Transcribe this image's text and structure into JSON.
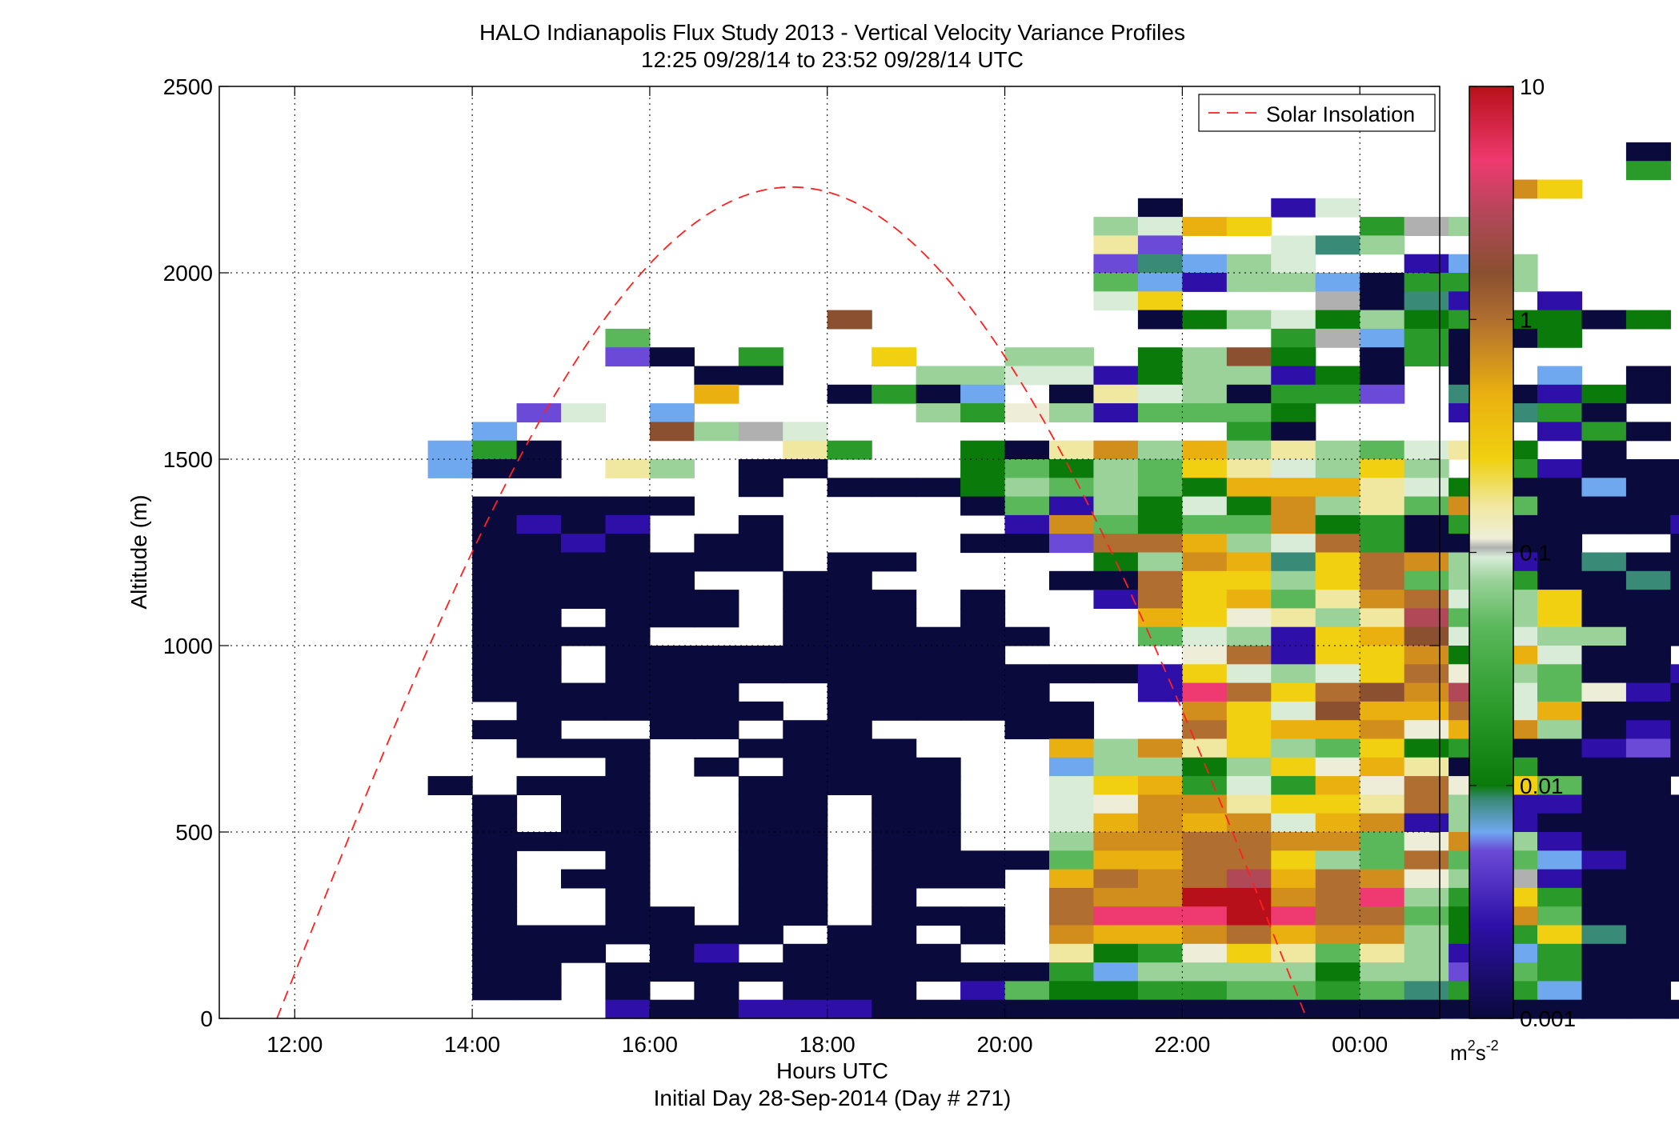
{
  "chart_data": {
    "type": "heatmap",
    "title": "HALO Indianapolis Flux Study 2013 - Vertical Velocity Variance Profiles",
    "subtitle": "12:25 09/28/14 to 23:52 09/28/14  UTC",
    "xlabel": "Hours UTC",
    "xlabel2": "Initial Day 28-Sep-2014 (Day # 271)",
    "ylabel": "Altitude (m)",
    "x_range_hours": [
      11.15,
      24.9
    ],
    "y_range_m": [
      0,
      2500
    ],
    "x_ticks": [
      {
        "value": 12,
        "label": "12:00"
      },
      {
        "value": 14,
        "label": "14:00"
      },
      {
        "value": 16,
        "label": "16:00"
      },
      {
        "value": 18,
        "label": "18:00"
      },
      {
        "value": 20,
        "label": "20:00"
      },
      {
        "value": 22,
        "label": "22:00"
      },
      {
        "value": 24,
        "label": "00:00"
      }
    ],
    "y_ticks": [
      {
        "value": 0,
        "label": "0"
      },
      {
        "value": 500,
        "label": "500"
      },
      {
        "value": 1000,
        "label": "1000"
      },
      {
        "value": 1500,
        "label": "1500"
      },
      {
        "value": 2000,
        "label": "2000"
      },
      {
        "value": 2500,
        "label": "2500"
      }
    ],
    "grid": true,
    "legend": {
      "position": "top-right",
      "entries": [
        {
          "name": "Solar Insolation",
          "style": "dashed",
          "color": "#ff2020"
        }
      ]
    },
    "colorbar": {
      "scale": "log",
      "range": [
        0.001,
        10
      ],
      "ticks": [
        {
          "value": 0.001,
          "label": "0.001"
        },
        {
          "value": 0.01,
          "label": "0.01"
        },
        {
          "value": 0.1,
          "label": "0.1"
        },
        {
          "value": 1,
          "label": "1"
        },
        {
          "value": 10,
          "label": "10"
        }
      ],
      "unit_base": "m",
      "unit_sup1": "2",
      "unit_mid": "s",
      "unit_sup2": "-2"
    },
    "cell_size": {
      "hours": 0.5,
      "meters": 50
    },
    "solar_insolation": {
      "color": "#ff2020",
      "t_rise": 11.8,
      "t_set": 23.4,
      "peak_m": 2230
    },
    "palette": {
      "A": "#0a0a3c",
      "V": "#2e10a8",
      "P": "#6a4ad6",
      "B": "#70a8f0",
      "T": "#3a8a78",
      "D": "#0a7a0a",
      "G": "#2a9a2a",
      "M": "#5ab85a",
      "L": "#9ad29a",
      "W": "#d8ecd8",
      "C": "#eeeed8",
      "S": "#b0b0b0",
      "K": "#f0e8a0",
      "Y": "#f0d010",
      "O": "#eab010",
      "N": "#d28e1c",
      "U": "#b06e30",
      "R": "#8a5030",
      "E": "#b04858",
      "F": "#ee3a70",
      "Q": "#b8101a"
    },
    "rows": [
      ".............................A.",
      ".............................G.",
      "..........................NY...",
      "..................A..VW........",
      ".................LWOY..GSL.....",
      ".................KP..WTL.......",
      ".................PTBLW..VBL....",
      ".................MBVLLBAGGL....",
      ".................WY...SATV.V...",
      "...........R......ADLWDLDGDDAD.",
      "......M..............GSBGAAD...",
      "......PA.G..Y..LL.DLRD.AGA.....",
      "........AA...LLWWVDLLVDA.A.B.A.",
      "........O..AGAB.AKWLAGGP.TAVDA.",
      "....PW.B.....LGCLVMMMD...VTGA..",
      "...B...RLSW.........GA.....VGA.",
      "..BGA.....KG..DAKNLOLKLMWKD.A..",
      "..BAA.KL.AA...DMDLMYKWLYL.GVAAA",
      ".........A.AAADLMLMDOOOKWDAABAA",
      "...AAAAA......AMVLDWDNLKMNMAAAA",
      "...AVAV..A.....VNMDMMNDGAGAAAAV",
      "...AAVA.AA....AAPUUOLWUGAAAA..A",
      "...AAAAAAA.AA....DLNOTYUNLVATAA",
      "...AAAAA..AA....AAUYYLYUMLGAATA",
      "...AAAAAA.AAA.A..VUYOMKNUWLYAAA",
      "...AA.AAA.AAA.A...OYCKLKEMLYAAA",
      "...AAAA...AAAAAA..MWLVYORWWLLAA",
      "...AA.AAAAAAAAA....CUVYYNDOWAA.",
      "...AA.AAAAAAAAAAAAVYWLWYUCLMAAV",
      "...AAAAAA..AAAAA..VFUYURNEWMCVA",
      "....AAAAAA.AAAAAA..NYWROOUWOAAA",
      "...AA..AA.AA...AA..UYOONCONLAVA",
      "....AAA..AAAA...OLNKYLMYDGAAVPA",
      "......A.A.AAAA..BLLDLYCOKAGAAAA",
      "..A.AAA..AAAAA..WYOGWGOCUCYMAA.",
      "...A.AA..AA.AA..WCNNKYYKULVVAAA",
      "...A.AA..AA.AA..WONONWONVLVAAAA",
      "...AAAA..AA.AA..LNNUUNNMCNLVAAA",
      "...A..A..AA.AAAAMOOUUYLMUMMBVAA",
      "...A.AA..AA.AAA.OUNUEOUNCLSVAAA",
      "...A..A..AA.A...UNNQQNUFLGYGAAA",
      "...A..AA.AA.AAA.UFFFQFUUMDNMAAA",
      "...AAAAAAA.AA.A.NOONUONNLDGYTAA",
      "...AAA.AV.AAAA..KDGCYKMKLVBGAAA",
      "...AA.AAAAAAAAAAGBLLLLDLLPMGAAA",
      "...AA.A.A.AAA.VMDDGGMMGMTGGBAA.",
      "......VAAVVVAAAAAAAAAAAAAAAAAAA"
    ]
  }
}
